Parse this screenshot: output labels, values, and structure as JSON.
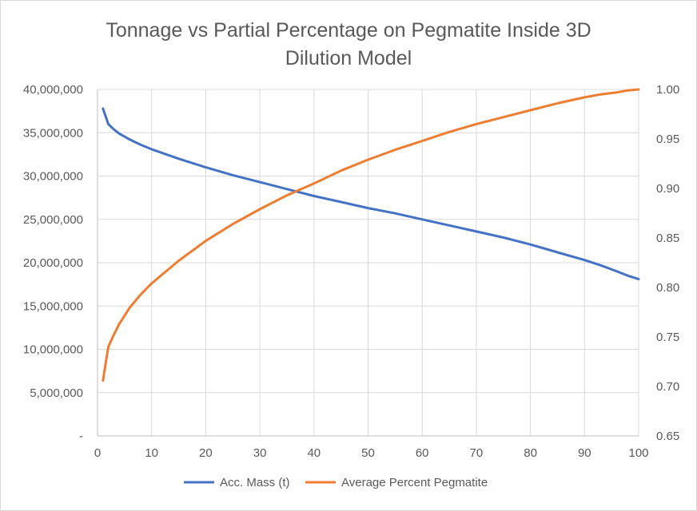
{
  "chart_data": {
    "type": "line",
    "title_lines": [
      "Tonnage vs Partial Percentage on Pegmatite Inside 3D",
      "Dilution Model"
    ],
    "xlabel": "",
    "ylabel": "",
    "y2label": "",
    "xlim": [
      0,
      100
    ],
    "x_ticks": [
      0,
      10,
      20,
      30,
      40,
      50,
      60,
      70,
      80,
      90,
      100
    ],
    "ylim": [
      0,
      40000000
    ],
    "y_tick_labels": [
      "-",
      "5,000,000",
      "10,000,000",
      "15,000,000",
      "20,000,000",
      "25,000,000",
      "30,000,000",
      "35,000,000",
      "40,000,000"
    ],
    "y2lim": [
      0.65,
      1.0
    ],
    "y2_tick_labels": [
      "0.65",
      "0.70",
      "0.75",
      "0.80",
      "0.85",
      "0.90",
      "0.95",
      "1.00"
    ],
    "grid": true,
    "legend_position": "bottom",
    "x": [
      1,
      2,
      3,
      4,
      6,
      8,
      10,
      15,
      20,
      25,
      30,
      35,
      40,
      45,
      50,
      55,
      60,
      65,
      70,
      75,
      80,
      85,
      90,
      93,
      96,
      98,
      100
    ],
    "series": [
      {
        "name": "Acc. Mass (t)",
        "color": "#4472c4",
        "axis": "left",
        "values": [
          37800000,
          36000000,
          35400000,
          34900000,
          34200000,
          33600000,
          33100000,
          32000000,
          31000000,
          30100000,
          29300000,
          28500000,
          27700000,
          27000000,
          26300000,
          25700000,
          25000000,
          24300000,
          23600000,
          22900000,
          22100000,
          21200000,
          20300000,
          19700000,
          19000000,
          18500000,
          18100000
        ]
      },
      {
        "name": "Average Percent Pegmatite",
        "color": "#ed7d31",
        "axis": "right",
        "values": [
          0.706,
          0.74,
          0.752,
          0.763,
          0.78,
          0.793,
          0.804,
          0.827,
          0.847,
          0.864,
          0.879,
          0.893,
          0.905,
          0.918,
          0.929,
          0.939,
          0.948,
          0.957,
          0.965,
          0.972,
          0.979,
          0.986,
          0.992,
          0.995,
          0.997,
          0.999,
          1.0
        ]
      }
    ]
  }
}
